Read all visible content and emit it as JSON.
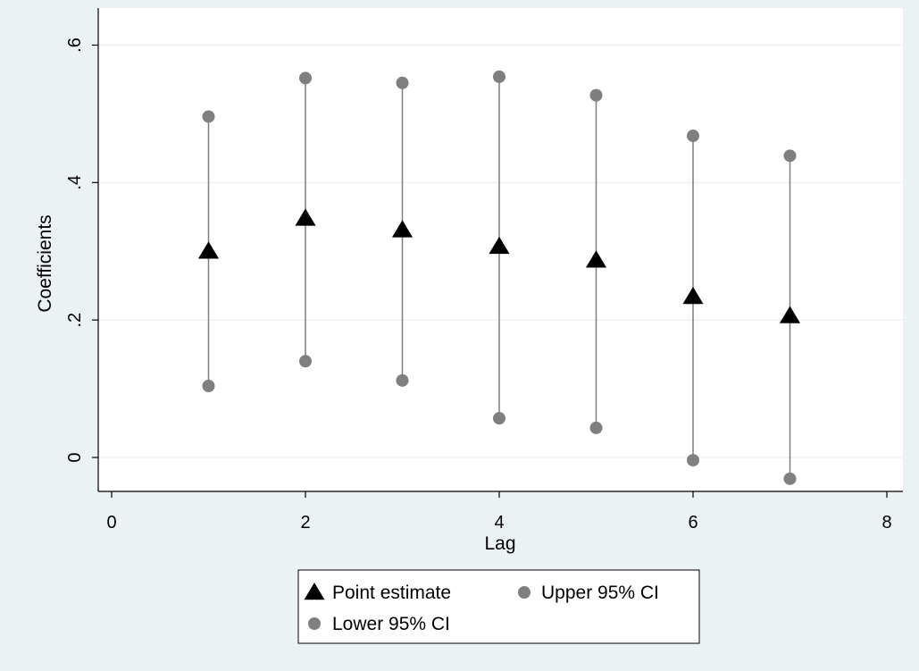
{
  "chart_data": {
    "type": "scatter",
    "xlabel": "Lag",
    "ylabel": "Coefficients",
    "xlim": [
      0,
      8
    ],
    "ylim": [
      -0.05,
      0.61
    ],
    "x_ticks": [
      0,
      2,
      4,
      6,
      8
    ],
    "x_tick_labels": [
      "0",
      "2",
      "4",
      "6",
      "8"
    ],
    "y_ticks": [
      0,
      0.2,
      0.4,
      0.6
    ],
    "y_tick_labels": [
      "0",
      ".2",
      ".4",
      ".6"
    ],
    "grid": "horizontal",
    "legend_position": "bottom",
    "x": [
      1,
      2,
      3,
      4,
      5,
      6,
      7
    ],
    "series": [
      {
        "name": "Point estimate",
        "marker": "triangle",
        "color": "#000000",
        "values": [
          0.3,
          0.348,
          0.331,
          0.307,
          0.287,
          0.234,
          0.206
        ]
      },
      {
        "name": "Upper 95% CI",
        "marker": "circle",
        "color": "#7f7f7f",
        "values": [
          0.496,
          0.552,
          0.545,
          0.554,
          0.527,
          0.468,
          0.439
        ]
      },
      {
        "name": "Lower 95% CI",
        "marker": "circle",
        "color": "#7f7f7f",
        "values": [
          0.104,
          0.14,
          0.112,
          0.057,
          0.043,
          -0.004,
          -0.031
        ]
      }
    ],
    "colors": {
      "outer_background": "#eaf2f3",
      "plot_background": "#ffffff",
      "gridline": "#eaf2f3",
      "ci_line": "#7f7f7f"
    }
  }
}
